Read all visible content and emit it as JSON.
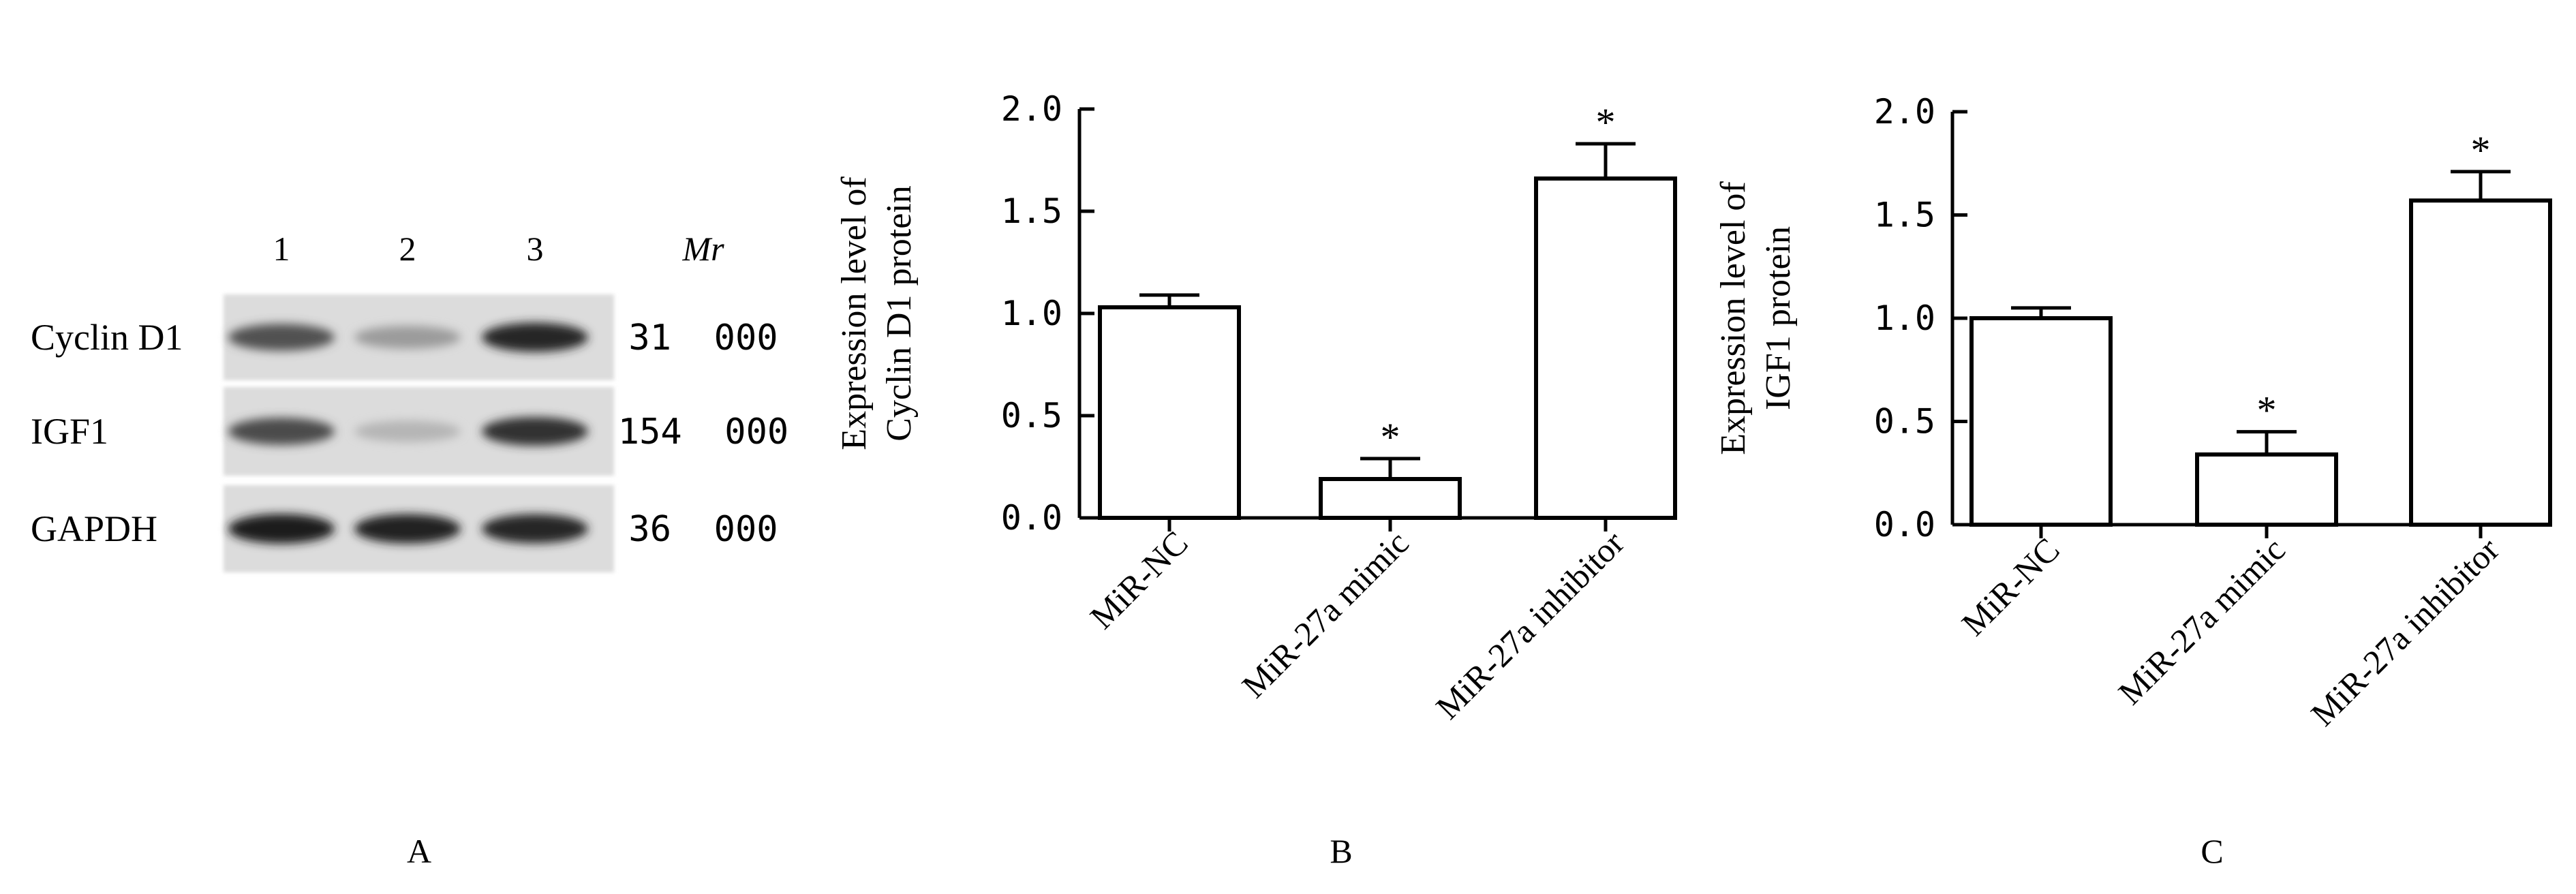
{
  "blot": {
    "lanes": [
      "1",
      "2",
      "3"
    ],
    "mr_header": "Mr",
    "rows": [
      {
        "label": "Cyclin D1",
        "mr": "31  000",
        "intensities": [
          0.72,
          0.35,
          0.93
        ]
      },
      {
        "label": "IGF1",
        "mr": "154  000",
        "intensities": [
          0.75,
          0.22,
          0.88
        ]
      },
      {
        "label": "GAPDH",
        "mr": "36  000",
        "intensities": [
          0.97,
          0.95,
          0.93
        ]
      }
    ],
    "panel_label": "A"
  },
  "chart_data": [
    {
      "type": "bar",
      "panel_label": "B",
      "ylabel": [
        "Expression level of",
        "Cyclin D1 protein"
      ],
      "categories": [
        "MiR-NC",
        "MiR-27a mimic",
        "MiR-27a inhibitor"
      ],
      "values": [
        1.03,
        0.19,
        1.66
      ],
      "errors": [
        0.06,
        0.1,
        0.17
      ],
      "significance": [
        "",
        "*",
        "*"
      ],
      "ylim": [
        0,
        2.0
      ],
      "yticks": [
        "0.0",
        "0.5",
        "1.0",
        "1.5",
        "2.0"
      ],
      "bar_color": "#ffffff",
      "stroke_color": "#000000"
    },
    {
      "type": "bar",
      "panel_label": "C",
      "ylabel": [
        "Expression level of",
        "IGF1 protein"
      ],
      "categories": [
        "MiR-NC",
        "MiR-27a mimic",
        "MiR-27a inhibitor"
      ],
      "values": [
        1.0,
        0.34,
        1.57
      ],
      "errors": [
        0.05,
        0.11,
        0.14
      ],
      "significance": [
        "",
        "*",
        "*"
      ],
      "ylim": [
        0,
        2.0
      ],
      "yticks": [
        "0.0",
        "0.5",
        "1.0",
        "1.5",
        "2.0"
      ],
      "bar_color": "#ffffff",
      "stroke_color": "#000000"
    }
  ]
}
